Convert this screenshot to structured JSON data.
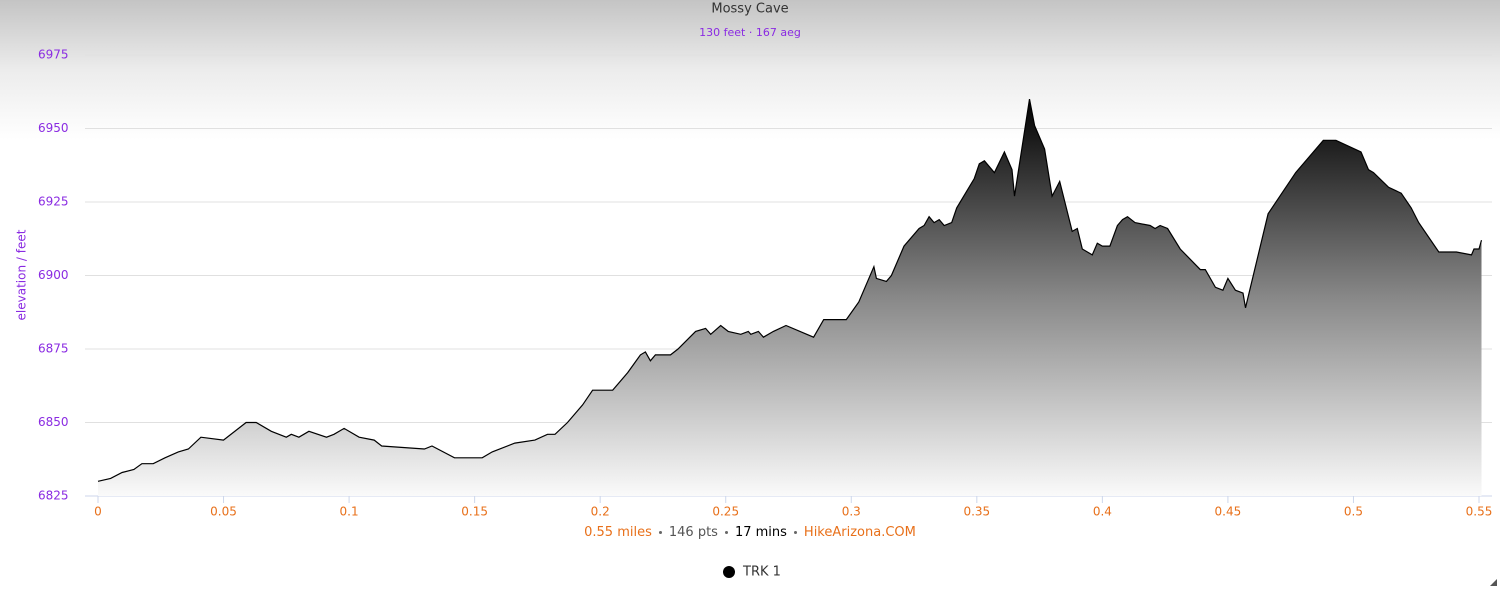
{
  "chart_data": {
    "type": "area",
    "title": "Mossy Cave",
    "subtitle": "130 feet · 167 aeg",
    "y_label": "elevation / feet",
    "footer": [
      "0.55 miles",
      "146 pts",
      "17 mins",
      "HikeArizona.COM"
    ],
    "x": [
      0,
      0.005,
      0.0096,
      0.0143,
      0.0175,
      0.022,
      0.0267,
      0.032,
      0.036,
      0.041,
      0.05,
      0.059,
      0.063,
      0.069,
      0.075,
      0.077,
      0.08,
      0.084,
      0.091,
      0.094,
      0.098,
      0.104,
      0.11,
      0.113,
      0.13,
      0.133,
      0.142,
      0.153,
      0.157,
      0.166,
      0.174,
      0.179,
      0.182,
      0.187,
      0.193,
      0.197,
      0.205,
      0.211,
      0.216,
      0.218,
      0.22,
      0.222,
      0.228,
      0.231,
      0.238,
      0.242,
      0.244,
      0.248,
      0.251,
      0.256,
      0.259,
      0.26,
      0.263,
      0.265,
      0.269,
      0.274,
      0.285,
      0.289,
      0.298,
      0.303,
      0.309,
      0.31,
      0.314,
      0.316,
      0.321,
      0.327,
      0.329,
      0.331,
      0.333,
      0.335,
      0.337,
      0.34,
      0.342,
      0.349,
      0.351,
      0.353,
      0.357,
      0.361,
      0.364,
      0.365,
      0.371,
      0.373,
      0.377,
      0.38,
      0.383,
      0.388,
      0.39,
      0.392,
      0.396,
      0.398,
      0.4,
      0.403,
      0.406,
      0.408,
      0.41,
      0.413,
      0.419,
      0.421,
      0.423,
      0.426,
      0.431,
      0.439,
      0.441,
      0.445,
      0.448,
      0.45,
      0.453,
      0.456,
      0.457,
      0.466,
      0.477,
      0.488,
      0.493,
      0.503,
      0.506,
      0.508,
      0.514,
      0.519,
      0.523,
      0.526,
      0.534,
      0.541,
      0.547,
      0.548,
      0.55,
      0.551
    ],
    "series": [
      {
        "name": "TRK 1",
        "color": "#000000",
        "values": [
          6830,
          6831,
          6833,
          6834,
          6836,
          6836,
          6838,
          6840,
          6841,
          6845,
          6844,
          6850,
          6850,
          6847,
          6845,
          6846,
          6845,
          6847,
          6845,
          6846,
          6848,
          6845,
          6844,
          6842,
          6841,
          6842,
          6838,
          6838,
          6840,
          6843,
          6844,
          6846,
          6846,
          6850,
          6856,
          6861,
          6861,
          6867,
          6873,
          6874,
          6871,
          6873,
          6873,
          6875,
          6881,
          6882,
          6880,
          6883,
          6881,
          6880,
          6881,
          6880,
          6881,
          6879,
          6881,
          6883,
          6879,
          6885,
          6885,
          6891,
          6903,
          6899,
          6898,
          6900,
          6910,
          6916,
          6917,
          6920,
          6918,
          6919,
          6917,
          6918,
          6923,
          6933,
          6938,
          6939,
          6935,
          6942,
          6936,
          6927,
          6960,
          6951,
          6943,
          6927,
          6932,
          6915,
          6916,
          6909,
          6907,
          6911,
          6910,
          6910,
          6917,
          6919,
          6920,
          6918,
          6917,
          6916,
          6917,
          6916,
          6909,
          6902,
          6902,
          6896,
          6895,
          6899,
          6895,
          6894,
          6889,
          6921,
          6935,
          6946,
          6946,
          6942,
          6936,
          6935,
          6930,
          6928,
          6923,
          6918,
          6908,
          6908,
          6907,
          6909,
          6909,
          6912
        ]
      }
    ],
    "xlim": [
      0,
      0.55
    ],
    "ylim": [
      6825,
      6975
    ],
    "xticks": [
      0,
      0.05,
      0.1,
      0.15,
      0.2,
      0.25,
      0.3,
      0.35,
      0.4,
      0.45,
      0.5,
      0.55
    ],
    "yticks": [
      6825,
      6850,
      6875,
      6900,
      6925,
      6950,
      6975
    ],
    "grid": true
  }
}
